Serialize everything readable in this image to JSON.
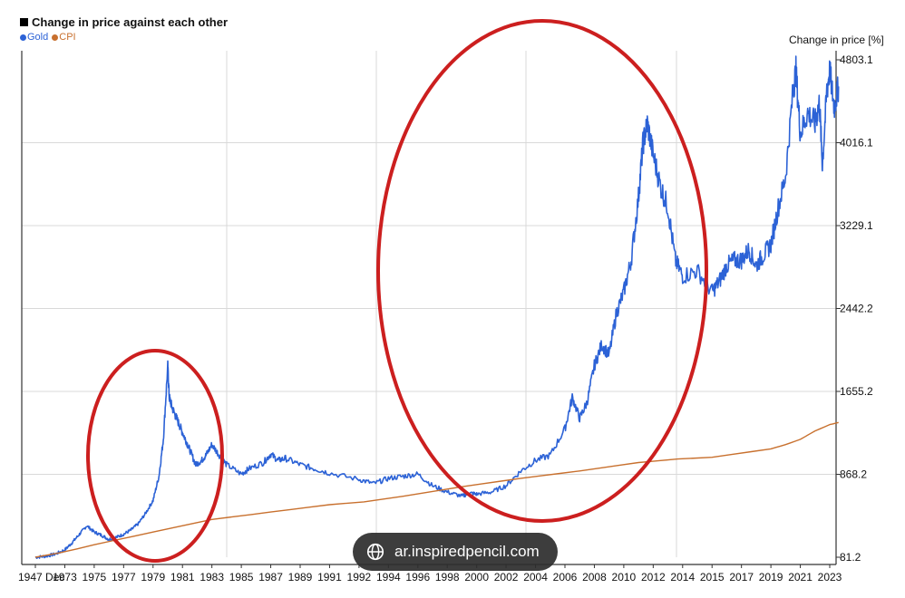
{
  "chart_data": {
    "type": "line",
    "title": "Change in price against each other",
    "ylabel": "Change in price [%]",
    "ylim": [
      81.2,
      4803.1
    ],
    "y_ticks": [
      "4803.1",
      "4016.1",
      "3229.1",
      "2442.2",
      "1655.2",
      "868.2",
      "81.2"
    ],
    "x_ticks": [
      "1947 Dec",
      "1973",
      "1975",
      "1977",
      "1979",
      "1981",
      "1983",
      "1985",
      "1987",
      "1989",
      "1991",
      "1992",
      "1994",
      "1996",
      "1998",
      "2000",
      "2002",
      "2004",
      "2006",
      "2008",
      "2010",
      "2012",
      "2014",
      "2015",
      "2017",
      "2019",
      "2021",
      "2023"
    ],
    "grid": true,
    "legend": "top-left",
    "series": [
      {
        "name": "Gold",
        "color": "#2c62d6",
        "x": [
          1971.5,
          1972.0,
          1972.5,
          1973.0,
          1973.5,
          1974.0,
          1974.5,
          1975.0,
          1975.5,
          1976.0,
          1976.5,
          1977.0,
          1977.5,
          1978.0,
          1978.5,
          1979.0,
          1979.4,
          1979.7,
          1980.0,
          1980.1,
          1980.3,
          1980.6,
          1980.9,
          1981.2,
          1981.5,
          1981.9,
          1982.3,
          1982.6,
          1983.0,
          1983.5,
          1984.0,
          1985.0,
          1985.5,
          1986.5,
          1987.0,
          1987.5,
          1988.0,
          1989.0,
          1990.0,
          1991.0,
          1992.0,
          1993.0,
          1994.0,
          1995.0,
          1996.0,
          1997.0,
          1998.0,
          1999.0,
          1999.5,
          2000.0,
          2001.0,
          2002.0,
          2003.0,
          2004.0,
          2005.0,
          2006.0,
          2006.5,
          2007.0,
          2007.5,
          2008.0,
          2008.5,
          2009.0,
          2009.5,
          2010.0,
          2010.5,
          2011.0,
          2011.3,
          2011.6,
          2012.0,
          2012.5,
          2013.0,
          2013.5,
          2014.0,
          2014.5,
          2015.0,
          2015.5,
          2016.0,
          2016.5,
          2017.0,
          2017.5,
          2018.0,
          2018.5,
          2019.0,
          2019.5,
          2020.0,
          2020.5,
          2020.7,
          2021.0,
          2021.5,
          2022.0,
          2022.3,
          2022.5,
          2022.8,
          2023.0,
          2023.3,
          2023.6
        ],
        "values": [
          81,
          90,
          110,
          150,
          220,
          300,
          380,
          320,
          290,
          250,
          270,
          300,
          340,
          400,
          500,
          620,
          850,
          1200,
          1900,
          1600,
          1500,
          1400,
          1300,
          1200,
          1100,
          960,
          1000,
          1050,
          1150,
          1050,
          960,
          870,
          920,
          980,
          1060,
          1000,
          1020,
          960,
          920,
          880,
          820,
          780,
          830,
          850,
          870,
          760,
          700,
          660,
          690,
          680,
          700,
          760,
          900,
          1000,
          1050,
          1300,
          1600,
          1400,
          1550,
          1900,
          2100,
          2000,
          2400,
          2600,
          2900,
          3500,
          4000,
          4200,
          3900,
          3600,
          3400,
          2900,
          2750,
          2800,
          2600,
          2700,
          2850,
          2900,
          2900,
          3000,
          2850,
          2950,
          3050,
          3400,
          3700,
          4500,
          4700,
          4100,
          4300,
          4200,
          4400,
          3800,
          4500,
          4700,
          4350,
          4550
        ]
      },
      {
        "name": "CPI",
        "color": "#c8702e",
        "x": [
          1971.5,
          1975.0,
          1979.0,
          1983.0,
          1987.0,
          1991.0,
          1995.0,
          1999.0,
          2003.0,
          2007.0,
          2011.0,
          2015.0,
          2019.0,
          2020.0,
          2021.0,
          2022.0,
          2023.0,
          2023.6
        ],
        "values": [
          81,
          200,
          320,
          440,
          510,
          580,
          660,
          750,
          830,
          900,
          980,
          1030,
          1110,
          1150,
          1200,
          1280,
          1340,
          1360
        ]
      }
    ]
  },
  "watermark": {
    "text": "ar.inspiredpencil.com",
    "icon": "globe-icon"
  },
  "annotations": [
    {
      "name": "red-circle-1979-spike",
      "color": "#cc1f1f"
    },
    {
      "name": "red-circle-2000-2012-rise",
      "color": "#cc1f1f"
    }
  ]
}
